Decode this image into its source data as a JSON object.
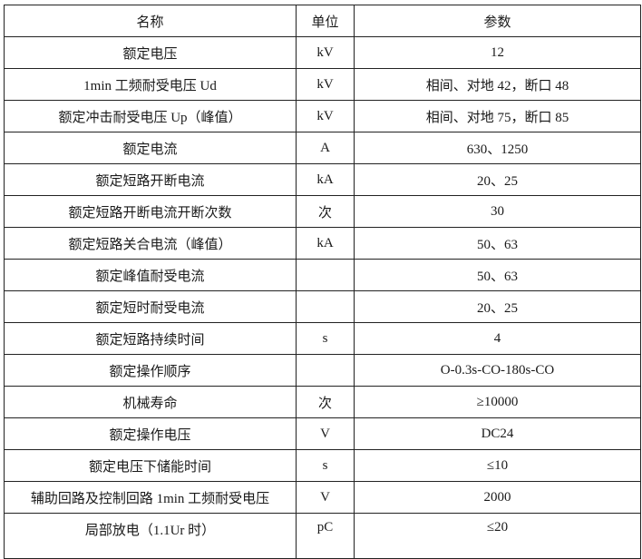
{
  "header": {
    "name": "名称",
    "unit": "单位",
    "value": "参数"
  },
  "rows": [
    {
      "name": "额定电压",
      "unit": "kV",
      "value": "12"
    },
    {
      "name": "1min 工频耐受电压 Ud",
      "unit": "kV",
      "value": "相间、对地 42，断口 48"
    },
    {
      "name": "额定冲击耐受电压 Up（峰值）",
      "unit": "kV",
      "value": "相间、对地 75，断口 85"
    },
    {
      "name": "额定电流",
      "unit": "A",
      "value": "630、1250"
    },
    {
      "name": "额定短路开断电流",
      "unit": "kA",
      "value": "20、25"
    },
    {
      "name": "额定短路开断电流开断次数",
      "unit": "次",
      "value": "30"
    },
    {
      "name": "额定短路关合电流（峰值）",
      "unit": "kA",
      "value": "50、63"
    },
    {
      "name": "额定峰值耐受电流",
      "unit": "",
      "value": "50、63"
    },
    {
      "name": "额定短时耐受电流",
      "unit": "",
      "value": "20、25"
    },
    {
      "name": "额定短路持续时间",
      "unit": "s",
      "value": "4"
    },
    {
      "name": "额定操作顺序",
      "unit": "",
      "value": "O-0.3s-CO-180s-CO"
    },
    {
      "name": "机械寿命",
      "unit": "次",
      "value": "≥10000"
    },
    {
      "name": "额定操作电压",
      "unit": "V",
      "value": "DC24"
    },
    {
      "name": "额定电压下储能时间",
      "unit": "s",
      "value": "≤10"
    },
    {
      "name": "辅助回路及控制回路 1min 工频耐受电压",
      "unit": "V",
      "value": "2000"
    },
    {
      "name": "局部放电（1.1Ur 时）",
      "unit": "pC",
      "value": "≤20"
    }
  ]
}
